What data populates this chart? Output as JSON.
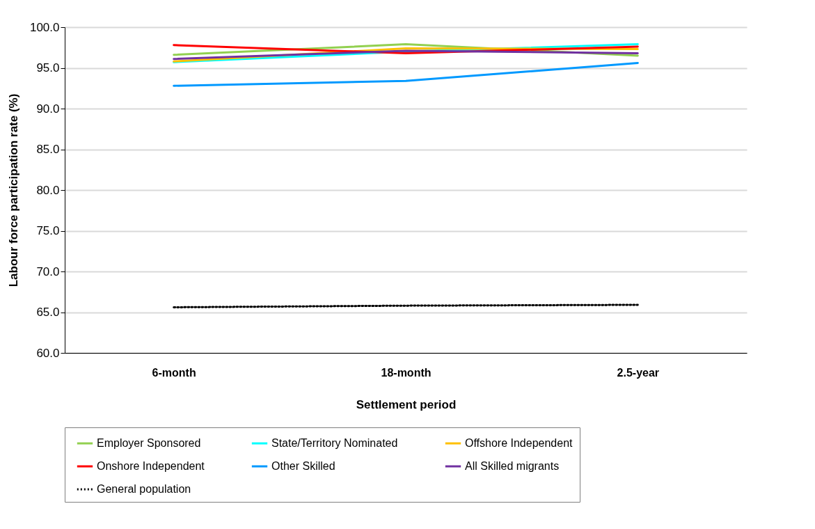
{
  "chart_data": {
    "type": "line",
    "xlabel": "Settlement period",
    "ylabel": "Labour force participation rate (%)",
    "categories": [
      "6-month",
      "18-month",
      "2.5-year"
    ],
    "ylim": [
      60,
      100
    ],
    "yticks": [
      {
        "value": 60,
        "label": "60.0"
      },
      {
        "value": 65,
        "label": "65.0"
      },
      {
        "value": 70,
        "label": "70.0"
      },
      {
        "value": 75,
        "label": "75.0"
      },
      {
        "value": 80,
        "label": "80.0"
      },
      {
        "value": 85,
        "label": "85.0"
      },
      {
        "value": 90,
        "label": "90.0"
      },
      {
        "value": 95,
        "label": "95.0"
      },
      {
        "value": 100,
        "label": "100.0"
      }
    ],
    "grid": "y",
    "legend": "bottom",
    "marker": "none",
    "series": [
      {
        "name": "Employer Sponsored",
        "color": "#92d050",
        "values": [
          96.6,
          97.9,
          96.5
        ]
      },
      {
        "name": "State/Territory Nominated",
        "color": "#00ffff",
        "values": [
          95.7,
          97.0,
          97.9
        ]
      },
      {
        "name": "Offshore Independent",
        "color": "#ffc000",
        "values": [
          95.8,
          97.4,
          97.3
        ]
      },
      {
        "name": "Onshore Independent",
        "color": "#ff0000",
        "values": [
          97.8,
          96.8,
          97.6
        ]
      },
      {
        "name": "Other Skilled",
        "color": "#0099ff",
        "values": [
          92.8,
          93.4,
          95.6
        ]
      },
      {
        "name": "All Skilled migrants",
        "color": "#7030a0",
        "values": [
          96.1,
          97.1,
          96.8
        ]
      },
      {
        "name": "General population",
        "color": "#000000",
        "values": [
          65.6,
          65.8,
          65.9
        ],
        "line_style": "dotted"
      }
    ]
  }
}
